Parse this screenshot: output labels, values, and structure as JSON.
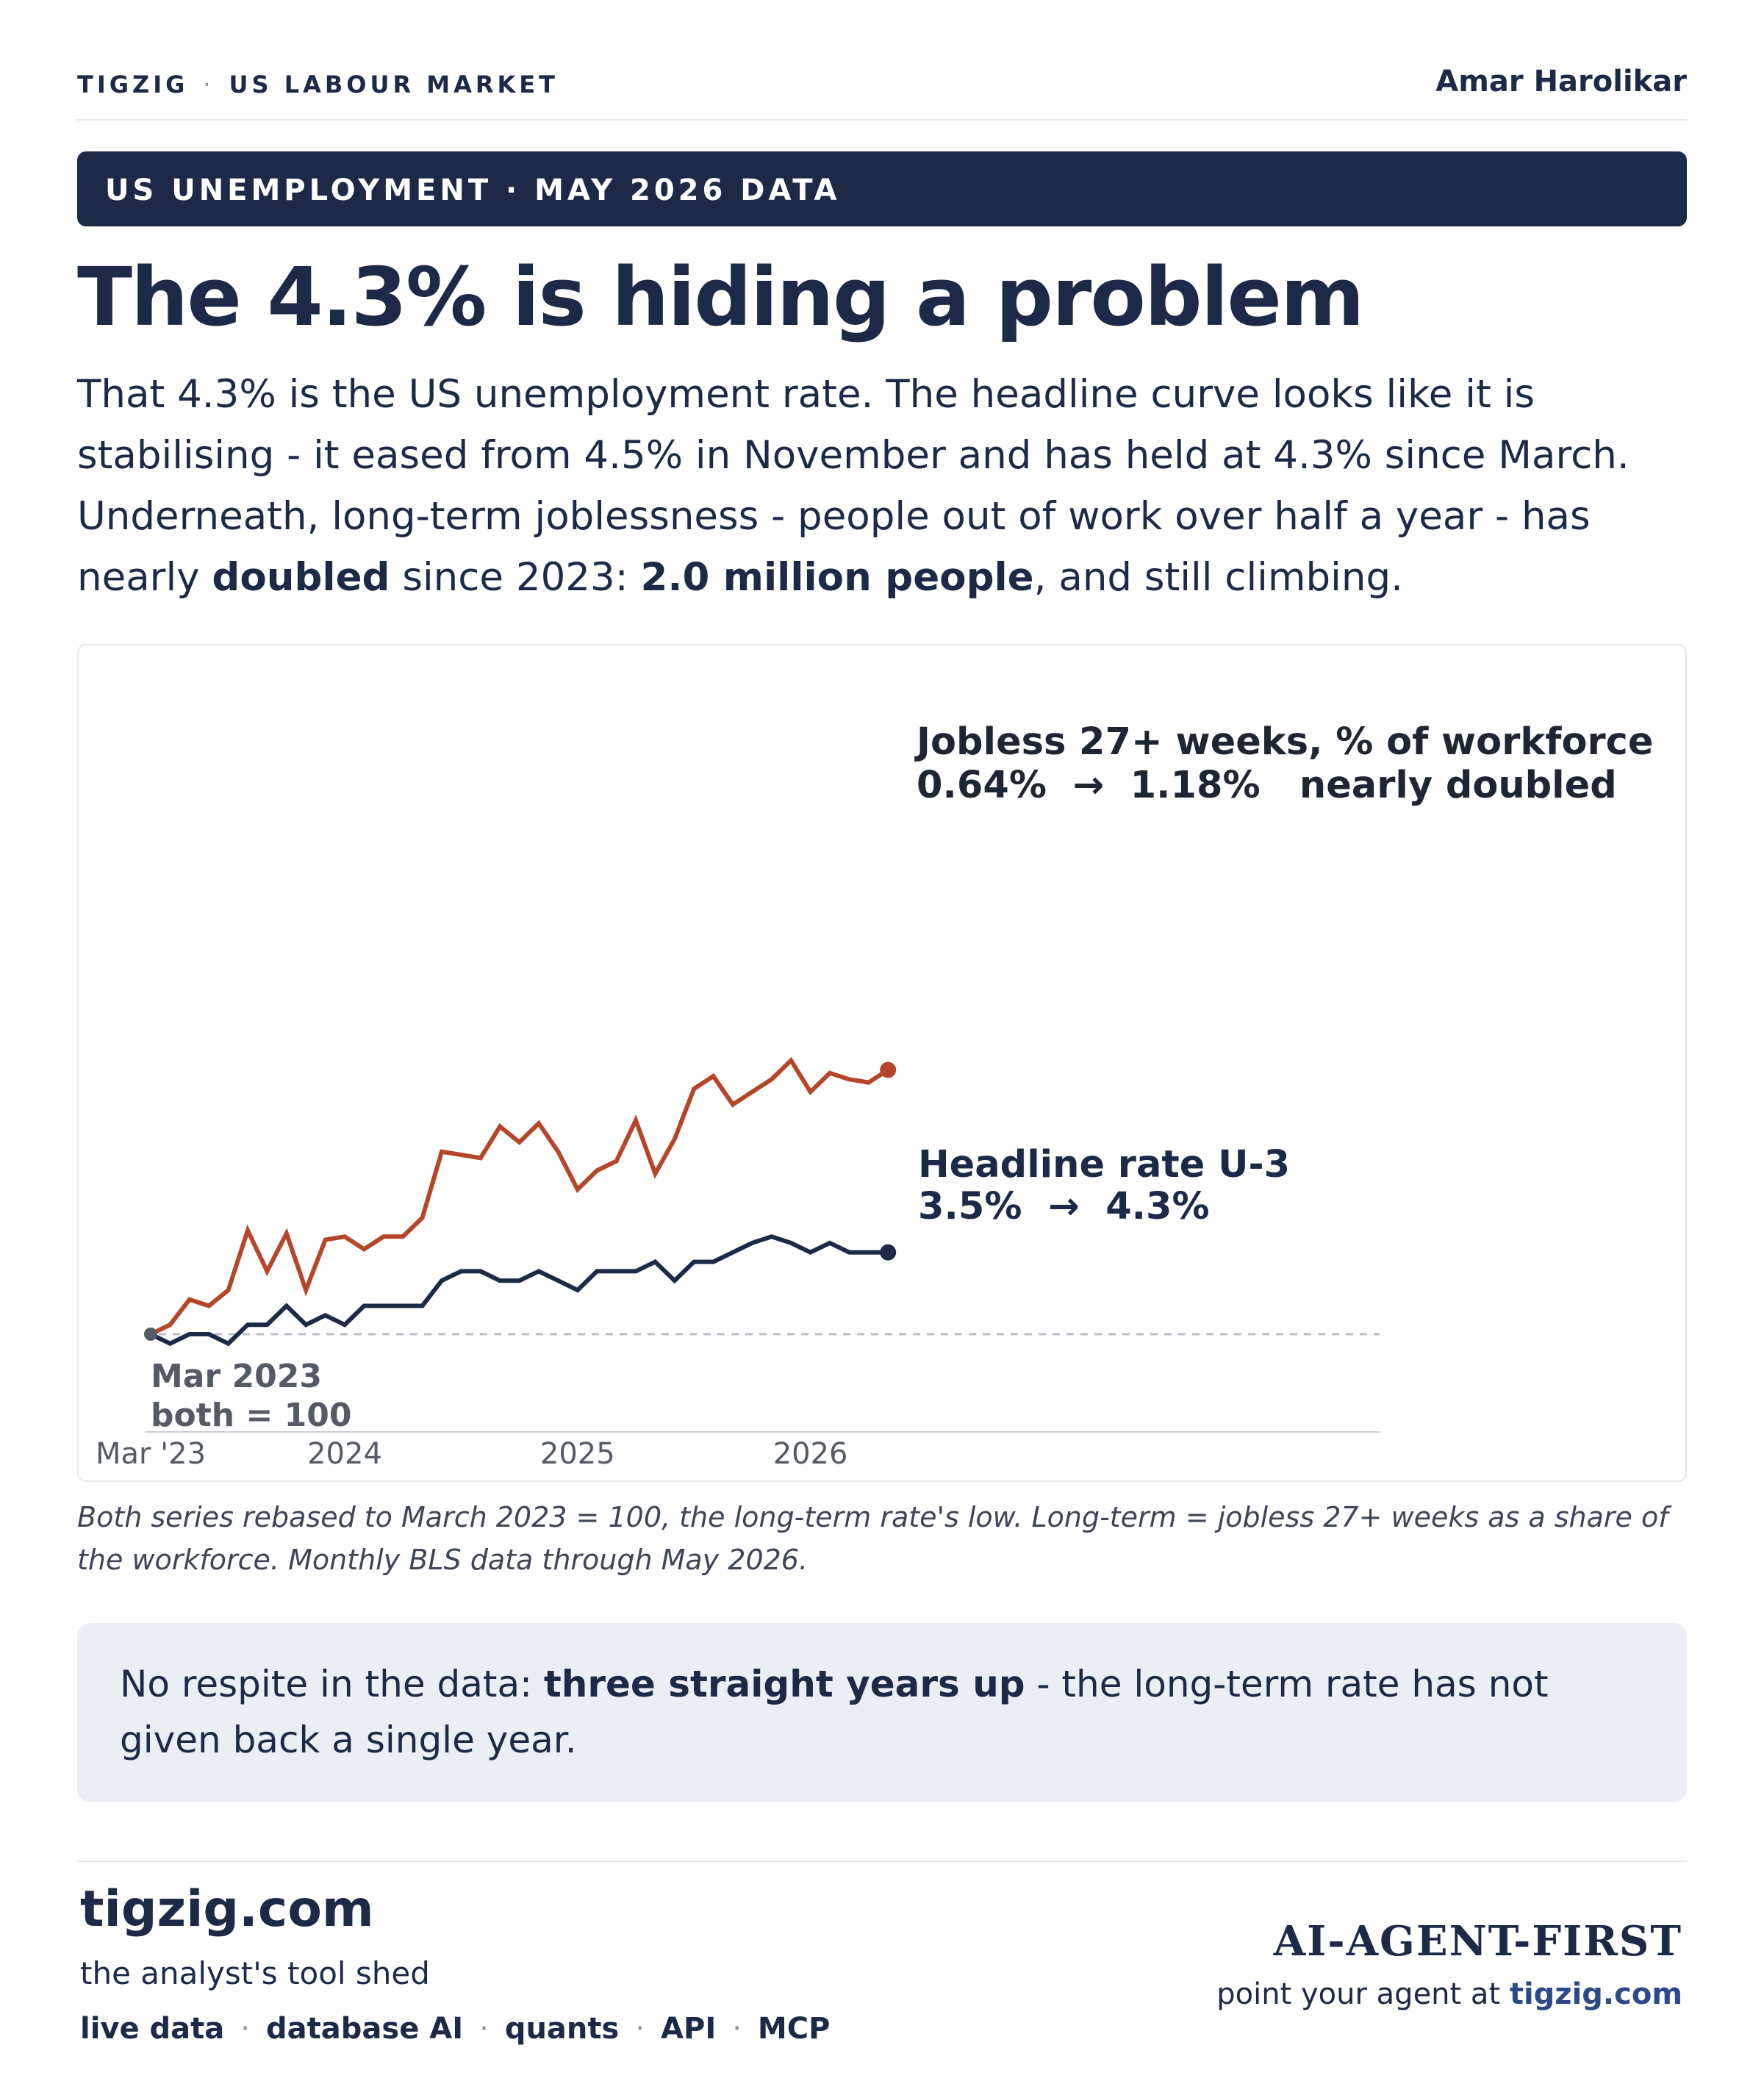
{
  "header": {
    "brand": "TIGZIG",
    "section": "US LABOUR MARKET",
    "author": "Amar Harolikar"
  },
  "banner": {
    "text": "US UNEMPLOYMENT · MAY 2026 DATA"
  },
  "title": "The 4.3% is hiding a problem",
  "intro": {
    "part1": "That 4.3% is the US unemployment rate. The headline curve looks like it is stabilising - it eased from 4.5% in November and has held at 4.3% since March. Underneath, long-term joblessness - people out of work over half a year - has nearly ",
    "bold1": "doubled",
    "part2": " since 2023: ",
    "bold2": "2.0 million people",
    "part3": ", and still climbing."
  },
  "chart_data": {
    "type": "line",
    "x_tick_labels": [
      "Mar '23",
      "2024",
      "2025",
      "2026"
    ],
    "x_tick_index": [
      0,
      10,
      22,
      34
    ],
    "baseline": 100,
    "baseline_annotation": [
      "Mar 2023",
      "both = 100"
    ],
    "series": [
      {
        "key": "long_term",
        "color": "#b5462a",
        "label_lines": [
          "Jobless 27+ weeks, % of workforce",
          "0.64%  →  1.18%   nearly doubled"
        ],
        "values": [
          100,
          103,
          111,
          109,
          114,
          133,
          120,
          132,
          114,
          130,
          131,
          127,
          131,
          131,
          137,
          158,
          157,
          156,
          166,
          161,
          167,
          158,
          146,
          152,
          155,
          168,
          151,
          162,
          178,
          182,
          173,
          177,
          181,
          187,
          177,
          183,
          181,
          180,
          184
        ]
      },
      {
        "key": "headline",
        "color": "#1c2a48",
        "label_lines": [
          "Headline rate U-3",
          "3.5%  →  4.3%"
        ],
        "values": [
          100,
          97,
          100,
          100,
          97,
          103,
          103,
          109,
          103,
          106,
          103,
          109,
          109,
          109,
          109,
          117,
          120,
          120,
          117,
          117,
          120,
          117,
          114,
          120,
          120,
          120,
          123,
          117,
          123,
          123,
          126,
          129,
          131,
          129,
          126,
          129,
          126,
          126,
          126
        ]
      }
    ]
  },
  "caption": "Both series rebased to March 2023 = 100, the long-term rate's low. Long-term = jobless 27+ weeks as a share of the workforce. Monthly BLS data through May 2026.",
  "callout": {
    "prefix": "No respite in the data: ",
    "bold": "three straight years up",
    "suffix": " - the long-term rate has not given back a single year."
  },
  "footer": {
    "site": "tigzig.com",
    "tagline": "the analyst's tool shed",
    "links": [
      "live data",
      "database AI",
      "quants",
      "API",
      "MCP"
    ],
    "agent_first": "AI-AGENT-FIRST",
    "agent_point_prefix": "point your agent at ",
    "agent_point_link": "tigzig.com"
  }
}
